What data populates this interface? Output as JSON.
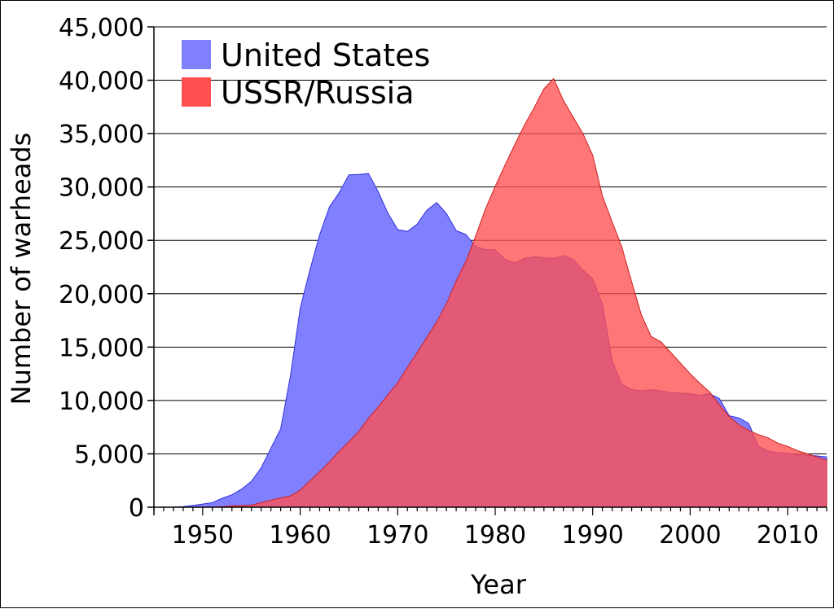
{
  "chart_data": {
    "type": "area",
    "xlabel": "Year",
    "ylabel": "Number of warheads",
    "xlim": [
      1945,
      2014
    ],
    "ylim": [
      0,
      45000
    ],
    "xticks": [
      1950,
      1960,
      1970,
      1980,
      1990,
      2000,
      2010
    ],
    "yticks": [
      {
        "value": 0,
        "label": "0"
      },
      {
        "value": 5000,
        "label": "5,000"
      },
      {
        "value": 10000,
        "label": "10,000"
      },
      {
        "value": 15000,
        "label": "15,000"
      },
      {
        "value": 20000,
        "label": "20,000"
      },
      {
        "value": 25000,
        "label": "25,000"
      },
      {
        "value": 30000,
        "label": "30,000"
      },
      {
        "value": 35000,
        "label": "35,000"
      },
      {
        "value": 40000,
        "label": "40,000"
      },
      {
        "value": 45000,
        "label": "45,000"
      }
    ],
    "grid": true,
    "legend_position": "top-left",
    "series": [
      {
        "name": "United States",
        "fill": "#8080ff",
        "stroke": "#3030e0",
        "x": [
          1945,
          1946,
          1947,
          1948,
          1949,
          1950,
          1951,
          1952,
          1953,
          1954,
          1955,
          1956,
          1957,
          1958,
          1959,
          1960,
          1961,
          1962,
          1963,
          1964,
          1965,
          1966,
          1967,
          1968,
          1969,
          1970,
          1971,
          1972,
          1973,
          1974,
          1975,
          1976,
          1977,
          1978,
          1979,
          1980,
          1981,
          1982,
          1983,
          1984,
          1985,
          1986,
          1987,
          1988,
          1989,
          1990,
          1991,
          1992,
          1993,
          1994,
          1995,
          1996,
          1997,
          1998,
          1999,
          2000,
          2001,
          2002,
          2003,
          2004,
          2005,
          2006,
          2007,
          2008,
          2009,
          2010,
          2011,
          2012,
          2013,
          2014
        ],
        "values": [
          2,
          9,
          13,
          50,
          170,
          299,
          438,
          841,
          1169,
          1703,
          2422,
          3692,
          5543,
          7345,
          12298,
          18638,
          22229,
          25540,
          28133,
          29463,
          31139,
          31175,
          31255,
          29561,
          27552,
          26008,
          25830,
          26516,
          27835,
          28537,
          27519,
          25914,
          25542,
          24418,
          24138,
          24104,
          23208,
          22886,
          23305,
          23459,
          23368,
          23317,
          23575,
          23205,
          22217,
          21392,
          19008,
          13708,
          11511,
          11011,
          10904,
          11011,
          10903,
          10732,
          10685,
          10615,
          10491,
          10640,
          10182,
          8570,
          8360,
          7853,
          5709,
          5273,
          5113,
          5066,
          4897,
          4881,
          4804,
          4717
        ]
      },
      {
        "name": "USSR/Russia",
        "fill": "#ff5050",
        "stroke": "#d02020",
        "x": [
          1945,
          1946,
          1947,
          1948,
          1949,
          1950,
          1951,
          1952,
          1953,
          1954,
          1955,
          1956,
          1957,
          1958,
          1959,
          1960,
          1961,
          1962,
          1963,
          1964,
          1965,
          1966,
          1967,
          1968,
          1969,
          1970,
          1971,
          1972,
          1973,
          1974,
          1975,
          1976,
          1977,
          1978,
          1979,
          1980,
          1981,
          1982,
          1983,
          1984,
          1985,
          1986,
          1987,
          1988,
          1989,
          1990,
          1991,
          1992,
          1993,
          1994,
          1995,
          1996,
          1997,
          1998,
          1999,
          2000,
          2001,
          2002,
          2003,
          2004,
          2005,
          2006,
          2007,
          2008,
          2009,
          2010,
          2011,
          2012,
          2013,
          2014
        ],
        "values": [
          0,
          0,
          0,
          0,
          1,
          5,
          25,
          50,
          120,
          150,
          200,
          426,
          660,
          869,
          1060,
          1605,
          2471,
          3322,
          4238,
          5221,
          6129,
          7089,
          8339,
          9399,
          10538,
          11643,
          13092,
          14478,
          15915,
          17385,
          19055,
          21205,
          23044,
          25393,
          27935,
          30062,
          32049,
          33952,
          35804,
          37431,
          39197,
          40159,
          38107,
          36538,
          35000,
          32980,
          29154,
          26734,
          24360,
          21097,
          18000,
          16000,
          15500,
          14500,
          13500,
          12500,
          11600,
          10800,
          9600,
          8500,
          7700,
          7200,
          6800,
          6500,
          6000,
          5700,
          5300,
          5000,
          4700,
          4400
        ]
      }
    ]
  }
}
